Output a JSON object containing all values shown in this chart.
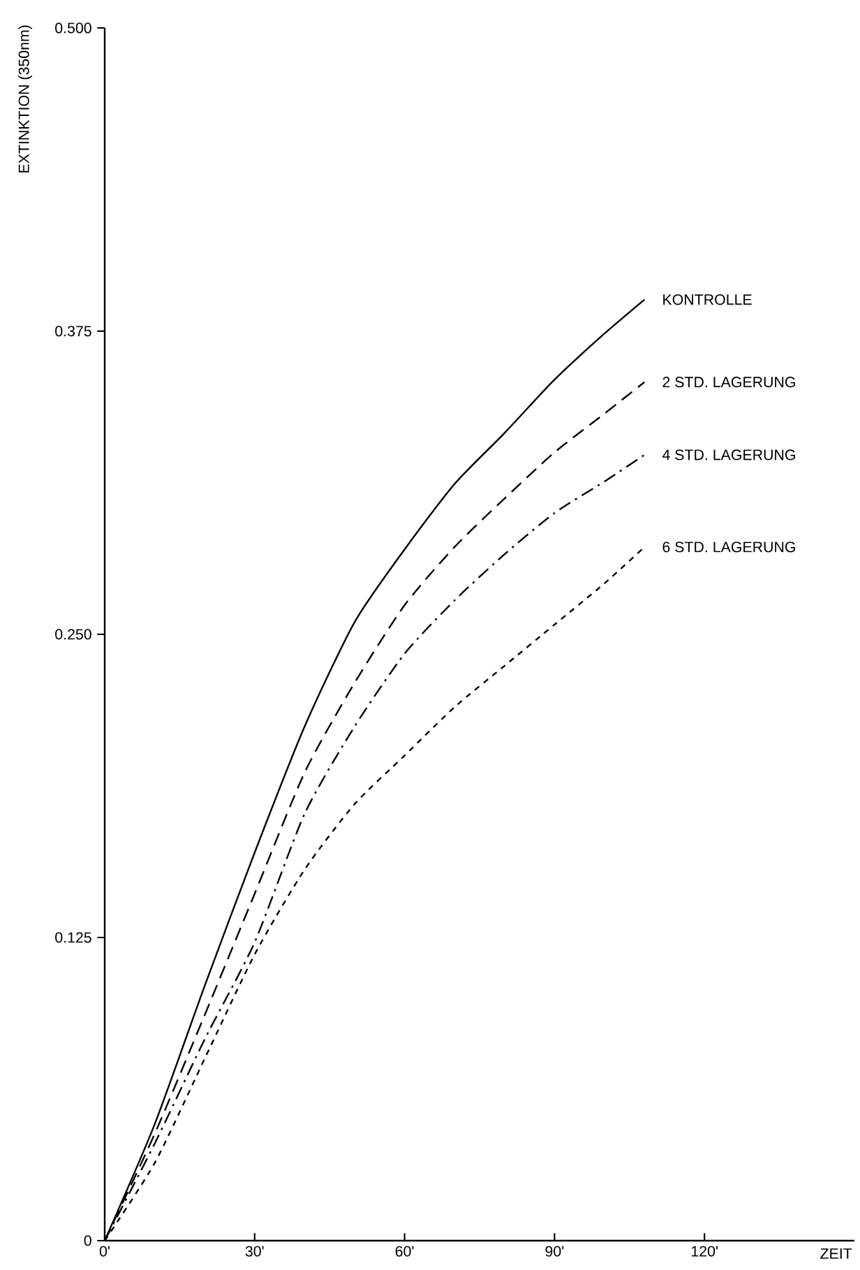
{
  "chart_data": {
    "type": "line",
    "xlabel": "ZEIT",
    "ylabel": "EXTINKTION (350nm)",
    "x": [
      0,
      10,
      20,
      30,
      40,
      50,
      60,
      70,
      80,
      90,
      100,
      108
    ],
    "series": [
      {
        "name": "KONTROLLE",
        "color": "#000000",
        "line_style": "solid",
        "values": [
          0,
          0.048,
          0.105,
          0.16,
          0.212,
          0.255,
          0.285,
          0.312,
          0.333,
          0.355,
          0.374,
          0.388
        ]
      },
      {
        "name": "2 STD. LAGERUNG",
        "color": "#000000",
        "line_style": "dashed",
        "values": [
          0,
          0.044,
          0.093,
          0.143,
          0.193,
          0.23,
          0.262,
          0.286,
          0.306,
          0.325,
          0.341,
          0.354
        ]
      },
      {
        "name": "4 STD. LAGERUNG",
        "color": "#000000",
        "line_style": "dashdot",
        "values": [
          0,
          0.04,
          0.083,
          0.123,
          0.176,
          0.212,
          0.242,
          0.264,
          0.283,
          0.3,
          0.313,
          0.324
        ]
      },
      {
        "name": "6 STD. LAGERUNG",
        "color": "#000000",
        "line_style": "dotted",
        "values": [
          0,
          0.032,
          0.075,
          0.118,
          0.153,
          0.18,
          0.2,
          0.22,
          0.237,
          0.254,
          0.271,
          0.286
        ]
      }
    ],
    "xlim": [
      0,
      150
    ],
    "ylim": [
      0,
      0.5
    ],
    "xticks": [
      {
        "value": 0,
        "label": "0'"
      },
      {
        "value": 30,
        "label": "30'"
      },
      {
        "value": 60,
        "label": "60'"
      },
      {
        "value": 90,
        "label": "90'"
      },
      {
        "value": 120,
        "label": "120'"
      }
    ],
    "yticks": [
      0,
      0.125,
      {
        "value": 0.25,
        "label": "0.250"
      },
      0.375,
      {
        "value": 0.5,
        "label": "0.500"
      }
    ],
    "legend": false
  }
}
